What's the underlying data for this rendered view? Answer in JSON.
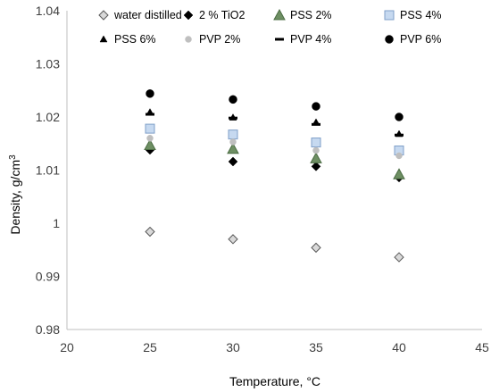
{
  "chart_data": {
    "type": "scatter",
    "xlabel": "Temperature, ",
    "xlabel_unit": "°C",
    "ylabel": "Density, g/cm",
    "ylabel_sup": "3",
    "xlim": [
      20,
      45
    ],
    "ylim": [
      0.98,
      1.04
    ],
    "x_ticks": [
      20,
      25,
      30,
      35,
      40,
      45
    ],
    "y_ticks": [
      0.98,
      0.99,
      1,
      1.01,
      1.02,
      1.03,
      1.04
    ],
    "x_tick_labels": [
      "20",
      "25",
      "30",
      "35",
      "40",
      "45"
    ],
    "y_tick_labels": [
      "0.98",
      "0.99",
      "1",
      "1.01",
      "1.02",
      "1.03",
      "1.04"
    ],
    "grid": false,
    "legend_position": "top",
    "x": [
      25,
      30,
      35,
      40
    ],
    "series": [
      {
        "name": "water distilled",
        "marker": "diamond-open",
        "fill": "#d9d9d9",
        "stroke": "#595959",
        "values": [
          0.9984,
          0.997,
          0.9954,
          0.9936
        ]
      },
      {
        "name": "2 % TiO2",
        "marker": "diamond",
        "fill": "#000000",
        "stroke": "#000000",
        "values": [
          1.0138,
          1.0116,
          1.0107,
          1.0086
        ]
      },
      {
        "name": "PSS 2%",
        "marker": "triangle",
        "fill": "#6e8f63",
        "stroke": "#4a6b42",
        "values": [
          1.0147,
          1.014,
          1.0122,
          1.0092
        ]
      },
      {
        "name": "PSS 4%",
        "marker": "square",
        "fill": "#c6d9f0",
        "stroke": "#7f9fc8",
        "values": [
          1.0178,
          1.0167,
          1.0152,
          1.0137
        ]
      },
      {
        "name": "PSS 6%",
        "marker": "triangle-small",
        "fill": "#000000",
        "stroke": "#000000",
        "values": [
          1.0209,
          1.0199,
          1.019,
          1.0168
        ]
      },
      {
        "name": "PVP 2%",
        "marker": "circle-small",
        "fill": "#bfbfbf",
        "stroke": "#bfbfbf",
        "values": [
          1.016,
          1.0153,
          1.0137,
          1.0127
        ]
      },
      {
        "name": "PVP 4%",
        "marker": "dash",
        "fill": "#000000",
        "stroke": "#000000",
        "values": [
          1.0205,
          1.0198,
          1.0186,
          1.0166
        ]
      },
      {
        "name": "PVP 6%",
        "marker": "circle",
        "fill": "#000000",
        "stroke": "#000000",
        "values": [
          1.0244,
          1.0233,
          1.022,
          1.02
        ]
      }
    ]
  }
}
